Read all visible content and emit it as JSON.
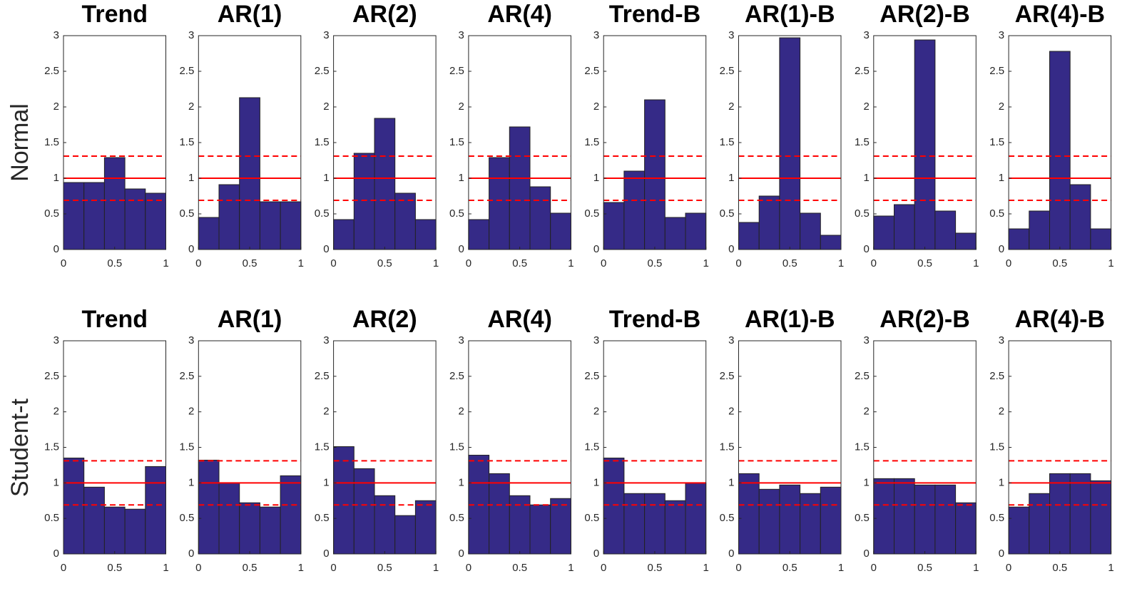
{
  "row_labels": [
    "Normal",
    "Student-t"
  ],
  "chart_data": [
    {
      "type": "histogram",
      "title": "Trend",
      "bins": [
        0,
        0.2,
        0.4,
        0.6,
        0.8,
        1
      ],
      "values": [
        0.94,
        0.94,
        1.29,
        0.85,
        0.79
      ],
      "color": "#352a87",
      "xlim": [
        0,
        1
      ],
      "ylim": [
        0,
        3
      ],
      "xticks": [
        0,
        0.5,
        1
      ],
      "yticks": [
        0,
        0.5,
        1,
        1.5,
        2,
        2.5,
        3
      ],
      "solid_lines": [
        1
      ],
      "dashed_lines": [
        0.69,
        1.31
      ],
      "line_color": "#ff0000"
    },
    {
      "type": "histogram",
      "title": "AR(1)",
      "bins": [
        0,
        0.2,
        0.4,
        0.6,
        0.8,
        1
      ],
      "values": [
        0.45,
        0.91,
        2.13,
        0.67,
        0.67
      ],
      "color": "#352a87",
      "xlim": [
        0,
        1
      ],
      "ylim": [
        0,
        3
      ],
      "xticks": [
        0,
        0.5,
        1
      ],
      "yticks": [
        0,
        0.5,
        1,
        1.5,
        2,
        2.5,
        3
      ],
      "solid_lines": [
        1
      ],
      "dashed_lines": [
        0.69,
        1.31
      ],
      "line_color": "#ff0000"
    },
    {
      "type": "histogram",
      "title": "AR(2)",
      "bins": [
        0,
        0.2,
        0.4,
        0.6,
        0.8,
        1
      ],
      "values": [
        0.42,
        1.35,
        1.84,
        0.79,
        0.42
      ],
      "color": "#352a87",
      "xlim": [
        0,
        1
      ],
      "ylim": [
        0,
        3
      ],
      "xticks": [
        0,
        0.5,
        1
      ],
      "yticks": [
        0,
        0.5,
        1,
        1.5,
        2,
        2.5,
        3
      ],
      "solid_lines": [
        1
      ],
      "dashed_lines": [
        0.69,
        1.31
      ],
      "line_color": "#ff0000"
    },
    {
      "type": "histogram",
      "title": "AR(4)",
      "bins": [
        0,
        0.2,
        0.4,
        0.6,
        0.8,
        1
      ],
      "values": [
        0.42,
        1.29,
        1.72,
        0.88,
        0.51
      ],
      "color": "#352a87",
      "xlim": [
        0,
        1
      ],
      "ylim": [
        0,
        3
      ],
      "xticks": [
        0,
        0.5,
        1
      ],
      "yticks": [
        0,
        0.5,
        1,
        1.5,
        2,
        2.5,
        3
      ],
      "solid_lines": [
        1
      ],
      "dashed_lines": [
        0.69,
        1.31
      ],
      "line_color": "#ff0000"
    },
    {
      "type": "histogram",
      "title": "Trend-B",
      "bins": [
        0,
        0.2,
        0.4,
        0.6,
        0.8,
        1
      ],
      "values": [
        0.66,
        1.1,
        2.1,
        0.45,
        0.51
      ],
      "color": "#352a87",
      "xlim": [
        0,
        1
      ],
      "ylim": [
        0,
        3
      ],
      "xticks": [
        0,
        0.5,
        1
      ],
      "yticks": [
        0,
        0.5,
        1,
        1.5,
        2,
        2.5,
        3
      ],
      "solid_lines": [
        1
      ],
      "dashed_lines": [
        0.69,
        1.31
      ],
      "line_color": "#ff0000"
    },
    {
      "type": "histogram",
      "title": "AR(1)-B",
      "bins": [
        0,
        0.2,
        0.4,
        0.6,
        0.8,
        1
      ],
      "values": [
        0.38,
        0.75,
        2.97,
        0.51,
        0.2
      ],
      "color": "#352a87",
      "xlim": [
        0,
        1
      ],
      "ylim": [
        0,
        3
      ],
      "xticks": [
        0,
        0.5,
        1
      ],
      "yticks": [
        0,
        0.5,
        1,
        1.5,
        2,
        2.5,
        3
      ],
      "solid_lines": [
        1
      ],
      "dashed_lines": [
        0.69,
        1.31
      ],
      "line_color": "#ff0000"
    },
    {
      "type": "histogram",
      "title": "AR(2)-B",
      "bins": [
        0,
        0.2,
        0.4,
        0.6,
        0.8,
        1
      ],
      "values": [
        0.47,
        0.63,
        2.94,
        0.54,
        0.23
      ],
      "color": "#352a87",
      "xlim": [
        0,
        1
      ],
      "ylim": [
        0,
        3
      ],
      "xticks": [
        0,
        0.5,
        1
      ],
      "yticks": [
        0,
        0.5,
        1,
        1.5,
        2,
        2.5,
        3
      ],
      "solid_lines": [
        1
      ],
      "dashed_lines": [
        0.69,
        1.31
      ],
      "line_color": "#ff0000"
    },
    {
      "type": "histogram",
      "title": "AR(4)-B",
      "bins": [
        0,
        0.2,
        0.4,
        0.6,
        0.8,
        1
      ],
      "values": [
        0.29,
        0.54,
        2.78,
        0.91,
        0.29
      ],
      "color": "#352a87",
      "xlim": [
        0,
        1
      ],
      "ylim": [
        0,
        3
      ],
      "xticks": [
        0,
        0.5,
        1
      ],
      "yticks": [
        0,
        0.5,
        1,
        1.5,
        2,
        2.5,
        3
      ],
      "solid_lines": [
        1
      ],
      "dashed_lines": [
        0.69,
        1.31
      ],
      "line_color": "#ff0000"
    },
    {
      "type": "histogram",
      "title": "Trend",
      "bins": [
        0,
        0.2,
        0.4,
        0.6,
        0.8,
        1
      ],
      "values": [
        1.35,
        0.94,
        0.66,
        0.63,
        1.23
      ],
      "color": "#352a87",
      "xlim": [
        0,
        1
      ],
      "ylim": [
        0,
        3
      ],
      "xticks": [
        0,
        0.5,
        1
      ],
      "yticks": [
        0,
        0.5,
        1,
        1.5,
        2,
        2.5,
        3
      ],
      "solid_lines": [
        1
      ],
      "dashed_lines": [
        0.69,
        1.31
      ],
      "line_color": "#ff0000"
    },
    {
      "type": "histogram",
      "title": "AR(1)",
      "bins": [
        0,
        0.2,
        0.4,
        0.6,
        0.8,
        1
      ],
      "values": [
        1.32,
        1.0,
        0.72,
        0.66,
        1.1
      ],
      "color": "#352a87",
      "xlim": [
        0,
        1
      ],
      "ylim": [
        0,
        3
      ],
      "xticks": [
        0,
        0.5,
        1
      ],
      "yticks": [
        0,
        0.5,
        1,
        1.5,
        2,
        2.5,
        3
      ],
      "solid_lines": [
        1
      ],
      "dashed_lines": [
        0.69,
        1.31
      ],
      "line_color": "#ff0000"
    },
    {
      "type": "histogram",
      "title": "AR(2)",
      "bins": [
        0,
        0.2,
        0.4,
        0.6,
        0.8,
        1
      ],
      "values": [
        1.51,
        1.2,
        0.82,
        0.54,
        0.75
      ],
      "color": "#352a87",
      "xlim": [
        0,
        1
      ],
      "ylim": [
        0,
        3
      ],
      "xticks": [
        0,
        0.5,
        1
      ],
      "yticks": [
        0,
        0.5,
        1,
        1.5,
        2,
        2.5,
        3
      ],
      "solid_lines": [
        1
      ],
      "dashed_lines": [
        0.69,
        1.31
      ],
      "line_color": "#ff0000"
    },
    {
      "type": "histogram",
      "title": "AR(4)",
      "bins": [
        0,
        0.2,
        0.4,
        0.6,
        0.8,
        1
      ],
      "values": [
        1.39,
        1.13,
        0.82,
        0.69,
        0.78
      ],
      "color": "#352a87",
      "xlim": [
        0,
        1
      ],
      "ylim": [
        0,
        3
      ],
      "xticks": [
        0,
        0.5,
        1
      ],
      "yticks": [
        0,
        0.5,
        1,
        1.5,
        2,
        2.5,
        3
      ],
      "solid_lines": [
        1
      ],
      "dashed_lines": [
        0.69,
        1.31
      ],
      "line_color": "#ff0000"
    },
    {
      "type": "histogram",
      "title": "Trend-B",
      "bins": [
        0,
        0.2,
        0.4,
        0.6,
        0.8,
        1
      ],
      "values": [
        1.35,
        0.85,
        0.85,
        0.75,
        1.0
      ],
      "color": "#352a87",
      "xlim": [
        0,
        1
      ],
      "ylim": [
        0,
        3
      ],
      "xticks": [
        0,
        0.5,
        1
      ],
      "yticks": [
        0,
        0.5,
        1,
        1.5,
        2,
        2.5,
        3
      ],
      "solid_lines": [
        1
      ],
      "dashed_lines": [
        0.69,
        1.31
      ],
      "line_color": "#ff0000"
    },
    {
      "type": "histogram",
      "title": "AR(1)-B",
      "bins": [
        0,
        0.2,
        0.4,
        0.6,
        0.8,
        1
      ],
      "values": [
        1.13,
        0.91,
        0.97,
        0.85,
        0.94
      ],
      "color": "#352a87",
      "xlim": [
        0,
        1
      ],
      "ylim": [
        0,
        3
      ],
      "xticks": [
        0,
        0.5,
        1
      ],
      "yticks": [
        0,
        0.5,
        1,
        1.5,
        2,
        2.5,
        3
      ],
      "solid_lines": [
        1
      ],
      "dashed_lines": [
        0.69,
        1.31
      ],
      "line_color": "#ff0000"
    },
    {
      "type": "histogram",
      "title": "AR(2)-B",
      "bins": [
        0,
        0.2,
        0.4,
        0.6,
        0.8,
        1
      ],
      "values": [
        1.06,
        1.06,
        0.97,
        0.97,
        0.72
      ],
      "color": "#352a87",
      "xlim": [
        0,
        1
      ],
      "ylim": [
        0,
        3
      ],
      "xticks": [
        0,
        0.5,
        1
      ],
      "yticks": [
        0,
        0.5,
        1,
        1.5,
        2,
        2.5,
        3
      ],
      "solid_lines": [
        1
      ],
      "dashed_lines": [
        0.69,
        1.31
      ],
      "line_color": "#ff0000"
    },
    {
      "type": "histogram",
      "title": "AR(4)-B",
      "bins": [
        0,
        0.2,
        0.4,
        0.6,
        0.8,
        1
      ],
      "values": [
        0.66,
        0.85,
        1.13,
        1.13,
        1.03
      ],
      "color": "#352a87",
      "xlim": [
        0,
        1
      ],
      "ylim": [
        0,
        3
      ],
      "xticks": [
        0,
        0.5,
        1
      ],
      "yticks": [
        0,
        0.5,
        1,
        1.5,
        2,
        2.5,
        3
      ],
      "solid_lines": [
        1
      ],
      "dashed_lines": [
        0.69,
        1.31
      ],
      "line_color": "#ff0000"
    }
  ]
}
